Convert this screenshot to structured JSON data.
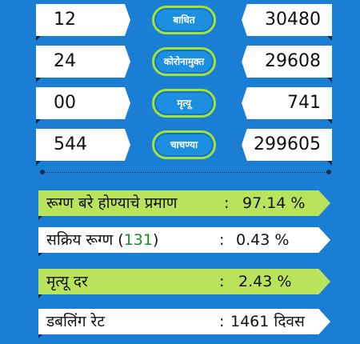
{
  "comparison_rows": [
    {
      "left_value": "12",
      "label": "बाधित",
      "right_value": "30480"
    },
    {
      "left_value": "24",
      "label": "कोरोनामुक्त",
      "right_value": "29608"
    },
    {
      "left_value": "00",
      "label": "मृत्यू",
      "right_value": "741"
    },
    {
      "left_value": "544",
      "label": "चाचण्या",
      "right_value": "299605"
    }
  ],
  "stats": {
    "recovery_rate": {
      "label": "रूग्ण बरे होण्याचे प्रमाण",
      "separator": ":",
      "value": "97.14 %"
    },
    "active_patients": {
      "label_prefix": "सक्रिय रूग्ण (",
      "count": "131",
      "label_suffix": ")",
      "separator": ":",
      "value": "0.43 %"
    },
    "death_rate": {
      "label": "मृत्यू दर",
      "separator": ":",
      "value": "2.43 %"
    },
    "doubling_rate": {
      "label": "डबलिंग रेट",
      "separator": ":",
      "value": "1461 दिवस"
    }
  },
  "colors": {
    "background": "#1a7fd4",
    "highlight_green": "#b9e35a",
    "pill_border": "#9ee43c",
    "count_green": "#1e8a2e"
  }
}
